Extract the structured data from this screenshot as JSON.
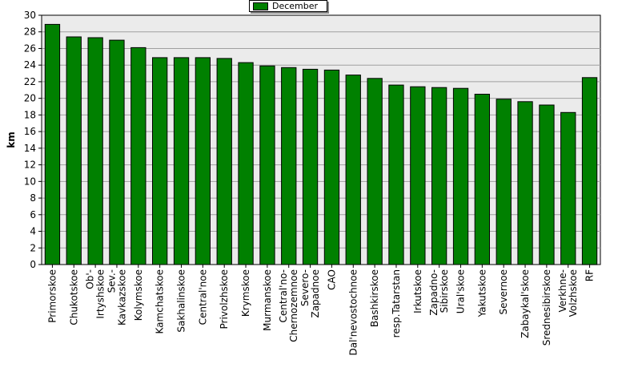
{
  "chart_data": {
    "type": "bar",
    "ylabel": "km",
    "ylim": [
      0,
      30
    ],
    "ytick_step": 2,
    "grid": true,
    "legend_position": "top-center",
    "series": [
      {
        "name": "December",
        "color": "#008000",
        "values": [
          28.9,
          27.4,
          27.3,
          27.0,
          26.1,
          24.9,
          24.9,
          24.9,
          24.8,
          24.3,
          23.9,
          23.7,
          23.5,
          23.4,
          22.8,
          22.4,
          21.6,
          21.4,
          21.3,
          21.2,
          20.5,
          19.9,
          19.6,
          19.2,
          18.3,
          22.5
        ]
      }
    ],
    "categories": [
      "Primorskoe",
      "Chukotskoe",
      "Ob'-Irtyshskoe",
      "Sev.-Kavkazskoe",
      "Kolymskoe",
      "Kamchatskoe",
      "Sakhalinskoe",
      "Central'noe",
      "Privolzhskoe",
      "Krymskoe",
      "Murmanskoe",
      "Central'no-Chernozemnoe",
      "Severo-Zapadnoe",
      "CAO",
      "Dal'nevostochnoe",
      "Bashkirskoe",
      "resp.Tatarstan",
      "Irkutskoe",
      "Zapadno-Sibirskoe",
      "Ural'skoe",
      "Yakutskoe",
      "Severnoe",
      "Zabaykal'skoe",
      "Srednesibirskoe",
      "Verkhne-Volzhskoe",
      "RF"
    ],
    "category_lines": [
      [
        "Primorskoe"
      ],
      [
        "Chukotskoe"
      ],
      [
        "Ob'-",
        "Irtyshskoe"
      ],
      [
        "Sev.-",
        "Kavkazskoe"
      ],
      [
        "Kolymskoe"
      ],
      [
        "Kamchatskoe"
      ],
      [
        "Sakhalinskoe"
      ],
      [
        "Central'noe"
      ],
      [
        "Privolzhskoe"
      ],
      [
        "Krymskoe"
      ],
      [
        "Murmanskoe"
      ],
      [
        "Central'no-",
        "Chernozemnoe"
      ],
      [
        "Severo-",
        "Zapadnoe"
      ],
      [
        "CAO"
      ],
      [
        "Dal'nevostochnoe"
      ],
      [
        "Bashkirskoe"
      ],
      [
        "resp.Tatarstan"
      ],
      [
        "Irkutskoe"
      ],
      [
        "Zapadno-",
        "Sibirskoe"
      ],
      [
        "Ural'skoe"
      ],
      [
        "Yakutskoe"
      ],
      [
        "Severnoe"
      ],
      [
        "Zabaykal'skoe"
      ],
      [
        "Srednesibirskoe"
      ],
      [
        "Verkhne-",
        "Volzhskoe"
      ],
      [
        "RF"
      ]
    ]
  }
}
